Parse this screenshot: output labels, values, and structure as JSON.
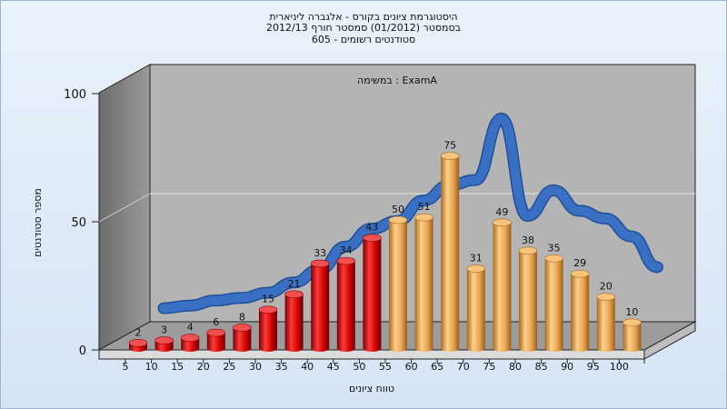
{
  "chart_data": {
    "type": "bar",
    "title_lines": [
      "היסטוגרמת ציונים בקורס - אלגברה ליניארית",
      "בסמסטר  (01/2012)  סמסטר חורף 2012/13",
      "605 - סטודנטים רשומים"
    ],
    "annotation": "במשימה : ExamA",
    "xlabel": "טווח ציונים",
    "ylabel": "מספר סטודנטים",
    "categories": [
      "5",
      "10",
      "15",
      "20",
      "25",
      "30",
      "35",
      "40",
      "45",
      "50",
      "55",
      "60",
      "65",
      "70",
      "75",
      "80",
      "85",
      "90",
      "95",
      "100"
    ],
    "values": [
      2,
      3,
      4,
      6,
      8,
      15,
      21,
      33,
      34,
      43,
      50,
      51,
      75,
      31,
      49,
      38,
      35,
      29,
      20,
      10
    ],
    "bar_colors": [
      "red",
      "red",
      "red",
      "red",
      "red",
      "red",
      "red",
      "red",
      "red",
      "red",
      "orange",
      "orange",
      "orange",
      "orange",
      "orange",
      "orange",
      "orange",
      "orange",
      "orange",
      "orange"
    ],
    "color_red": "#e01010",
    "color_orange": "#eeaa55",
    "curve_color": "#3a70c4",
    "curve": [
      6,
      7,
      9,
      10,
      12,
      16,
      21,
      30,
      37,
      40,
      48,
      54,
      56,
      80,
      42,
      52,
      44,
      41,
      34,
      22
    ],
    "yticks": [
      0,
      50,
      100
    ],
    "ylim": [
      0,
      100
    ],
    "grid": true,
    "legend": "none"
  }
}
